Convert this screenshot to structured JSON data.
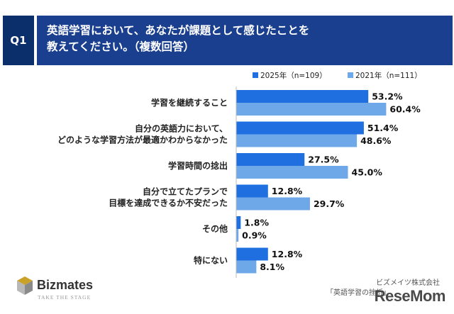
{
  "header": {
    "badge": "Q1",
    "title_line1": "英語学習において、あなたが課題として感じたことを",
    "title_line2": "教えてください。（複数回答）"
  },
  "chart_data": {
    "type": "bar",
    "orientation": "horizontal",
    "categories": [
      [
        "学習を継続すること"
      ],
      [
        "自分の英語力において、",
        "どのような学習方法が最適かわからなかった"
      ],
      [
        "学習時間の捻出"
      ],
      [
        "自分で立てたプランで",
        "目標を達成できるか不安だった"
      ],
      [
        "その他"
      ],
      [
        "特にない"
      ]
    ],
    "series": [
      {
        "name": "2025年（n=109）",
        "values": [
          53.2,
          51.4,
          27.5,
          12.8,
          1.8,
          12.8
        ],
        "color": "#1f6fe0"
      },
      {
        "name": "2021年（n=111）",
        "values": [
          60.4,
          48.6,
          45.0,
          29.7,
          0.9,
          8.1
        ],
        "color": "#6fa8e8"
      }
    ],
    "value_suffix": "%",
    "xlim": [
      0,
      100
    ]
  },
  "branding": {
    "logo": "Bizmates",
    "tagline": "TAKE THE STAGE",
    "watermark": "ReseMom"
  },
  "source": {
    "company": "ビズメイツ株式会社",
    "report": "「英語学習の挫折」"
  }
}
